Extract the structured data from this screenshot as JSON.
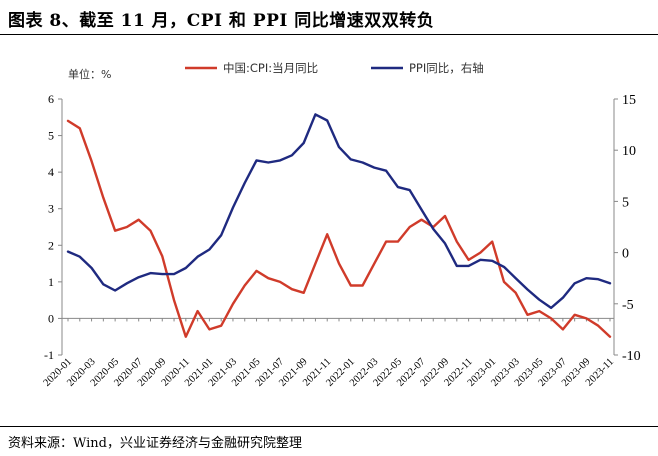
{
  "header": {
    "title": "图表 8、截至 11 月，CPI 和 PPI 同比增速双双转负"
  },
  "footer": {
    "source": "资料来源：Wind，兴业证券经济与金融研究院整理"
  },
  "colors": {
    "cpi": "#d03b2a",
    "ppi": "#1f2a80",
    "axis": "#888888"
  },
  "chart_data": {
    "type": "line",
    "unit_label": "单位：%",
    "x": [
      "2020-01",
      "2020-02",
      "2020-03",
      "2020-04",
      "2020-05",
      "2020-06",
      "2020-07",
      "2020-08",
      "2020-09",
      "2020-10",
      "2020-11",
      "2020-12",
      "2021-01",
      "2021-02",
      "2021-03",
      "2021-04",
      "2021-05",
      "2021-06",
      "2021-07",
      "2021-08",
      "2021-09",
      "2021-10",
      "2021-11",
      "2021-12",
      "2022-01",
      "2022-02",
      "2022-03",
      "2022-04",
      "2022-05",
      "2022-06",
      "2022-07",
      "2022-08",
      "2022-09",
      "2022-10",
      "2022-11",
      "2022-12",
      "2023-01",
      "2023-02",
      "2023-03",
      "2023-04",
      "2023-05",
      "2023-06",
      "2023-07",
      "2023-08",
      "2023-09",
      "2023-10",
      "2023-11"
    ],
    "x_tick_labels": [
      "2020-01",
      "2020-03",
      "2020-05",
      "2020-07",
      "2020-09",
      "2020-11",
      "2021-01",
      "2021-03",
      "2021-05",
      "2021-07",
      "2021-09",
      "2021-11",
      "2022-01",
      "2022-03",
      "2022-05",
      "2022-07",
      "2022-09",
      "2022-11",
      "2023-01",
      "2023-03",
      "2023-05",
      "2023-07",
      "2023-09",
      "2023-11"
    ],
    "y_left": {
      "range": [
        -1,
        6
      ],
      "ticks": [
        6,
        5,
        4,
        3,
        2,
        1,
        0,
        -1
      ]
    },
    "y_right": {
      "range": [
        -10,
        15
      ],
      "ticks": [
        15,
        10,
        5,
        0,
        -5,
        -10
      ]
    },
    "legend_position": "top",
    "series": [
      {
        "name": "中国:CPI:当月同比",
        "axis": "left",
        "color": "#d03b2a",
        "values": [
          5.4,
          5.2,
          4.3,
          3.3,
          2.4,
          2.5,
          2.7,
          2.4,
          1.7,
          0.5,
          -0.5,
          0.2,
          -0.3,
          -0.2,
          0.4,
          0.9,
          1.3,
          1.1,
          1.0,
          0.8,
          0.7,
          1.5,
          2.3,
          1.5,
          0.9,
          0.9,
          1.5,
          2.1,
          2.1,
          2.5,
          2.7,
          2.5,
          2.8,
          2.1,
          1.6,
          1.8,
          2.1,
          1.0,
          0.7,
          0.1,
          0.2,
          0.0,
          -0.3,
          0.1,
          0.0,
          -0.2,
          -0.5
        ]
      },
      {
        "name": "PPI同比，右轴",
        "axis": "right",
        "color": "#1f2a80",
        "values": [
          0.1,
          -0.4,
          -1.5,
          -3.1,
          -3.7,
          -3.0,
          -2.4,
          -2.0,
          -2.1,
          -2.1,
          -1.5,
          -0.4,
          0.3,
          1.7,
          4.4,
          6.8,
          9.0,
          8.8,
          9.0,
          9.5,
          10.7,
          13.5,
          12.9,
          10.3,
          9.1,
          8.8,
          8.3,
          8.0,
          6.4,
          6.1,
          4.2,
          2.3,
          0.9,
          -1.3,
          -1.3,
          -0.7,
          -0.8,
          -1.4,
          -2.5,
          -3.6,
          -4.6,
          -5.4,
          -4.4,
          -3.0,
          -2.5,
          -2.6,
          -3.0
        ]
      }
    ]
  }
}
